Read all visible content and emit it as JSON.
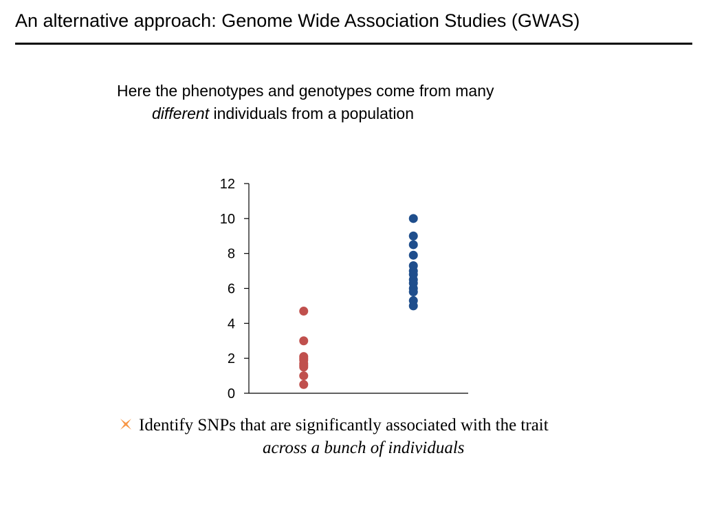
{
  "slide": {
    "title": "An alternative approach:  Genome Wide Association Studies (GWAS)",
    "intro_line1": "Here the phenotypes and genotypes come from many",
    "intro_line2_em": "different",
    "intro_line2_rest": " individuals from a population",
    "bullet_line1": "Identify SNPs that are significantly associated with the trait",
    "bullet_line2": "across a bunch of individuals",
    "bullet_icon": "x-bullet-icon"
  },
  "colors": {
    "series_red": "#c0504d",
    "series_blue": "#1f4e8c",
    "bullet_orange": "#f79646"
  },
  "chart_data": {
    "type": "scatter",
    "title": "",
    "xlabel": "",
    "ylabel": "",
    "ylim": [
      0,
      12
    ],
    "yticks": [
      0,
      2,
      4,
      6,
      8,
      10,
      12
    ],
    "grid": false,
    "legend": "none",
    "x_categories": 2,
    "series": [
      {
        "x": 1,
        "color": "#c0504d",
        "values": [
          4.7,
          3.0,
          2.1,
          2.0,
          1.9,
          1.7,
          1.6,
          1.5,
          1.0,
          0.5
        ]
      },
      {
        "x": 2,
        "color": "#1f4e8c",
        "values": [
          10.0,
          9.0,
          8.5,
          7.9,
          7.3,
          7.0,
          6.8,
          6.5,
          6.3,
          6.0,
          5.8,
          5.3,
          5.0
        ]
      }
    ]
  }
}
